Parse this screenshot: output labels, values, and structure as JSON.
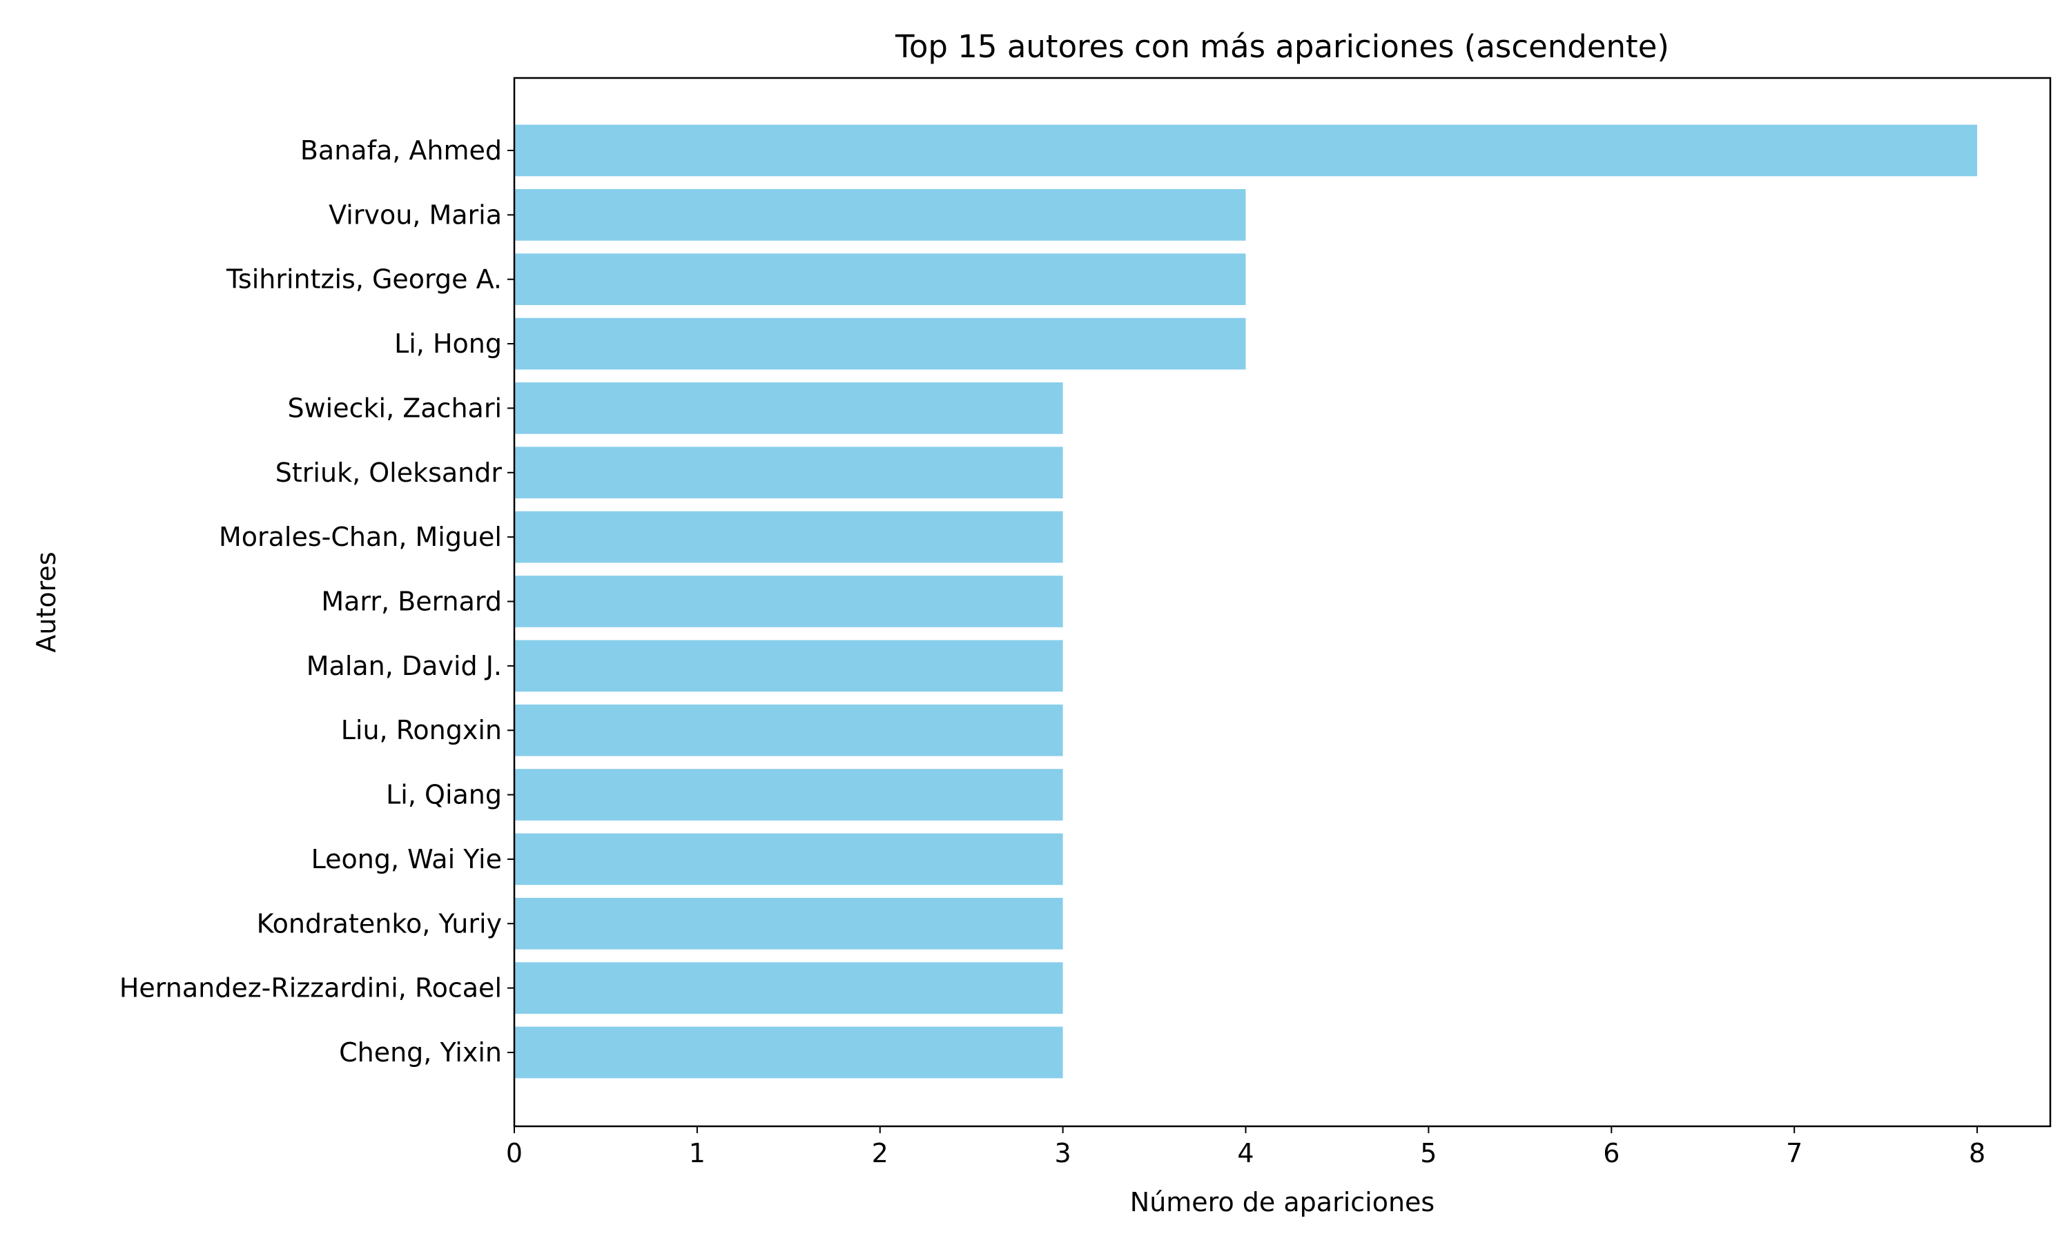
{
  "chart_data": {
    "type": "bar",
    "orientation": "horizontal",
    "title": "Top 15 autores con más apariciones (ascendente)",
    "xlabel": "Número de apariciones",
    "ylabel": "Autores",
    "categories": [
      "Banafa, Ahmed",
      "Virvou, Maria",
      "Tsihrintzis, George A.",
      "Li, Hong",
      "Swiecki, Zachari",
      "Striuk, Oleksandr",
      "Morales-Chan, Miguel",
      "Marr, Bernard",
      "Malan, David J.",
      "Liu, Rongxin",
      "Li, Qiang",
      "Leong, Wai Yie",
      "Kondratenko, Yuriy",
      "Hernandez-Rizzardini, Rocael",
      "Cheng, Yixin"
    ],
    "values": [
      8,
      4,
      4,
      4,
      3,
      3,
      3,
      3,
      3,
      3,
      3,
      3,
      3,
      3,
      3
    ],
    "xlim": [
      0,
      8.4
    ],
    "xticks": [
      0,
      1,
      2,
      3,
      4,
      5,
      6,
      7,
      8
    ],
    "grid": false,
    "bar_color": "#87ceeb"
  }
}
